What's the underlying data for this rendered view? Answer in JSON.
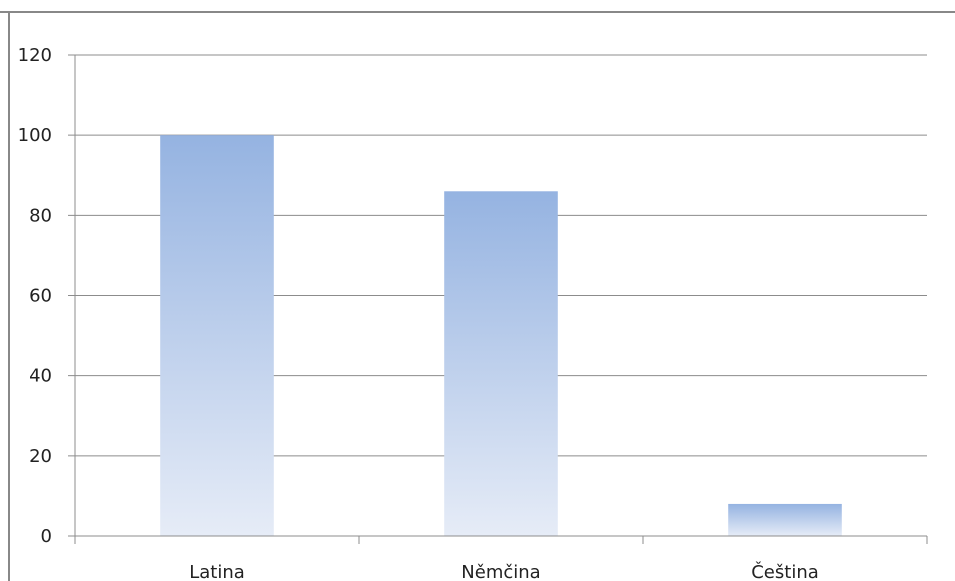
{
  "chart_data": {
    "type": "bar",
    "categories": [
      "Latina",
      "Němčina",
      "Čeština"
    ],
    "values": [
      100,
      86,
      8
    ],
    "ylim": [
      0,
      120
    ],
    "yticks": [
      0,
      20,
      40,
      60,
      80,
      100,
      120
    ],
    "grid": true,
    "legend": "none",
    "colors": {
      "bar_top": "#95b3e1",
      "bar_bottom": "#e6ecf7",
      "gridline": "#8c8c8c",
      "axis": "#8c8c8c",
      "frame": "#888888"
    }
  }
}
